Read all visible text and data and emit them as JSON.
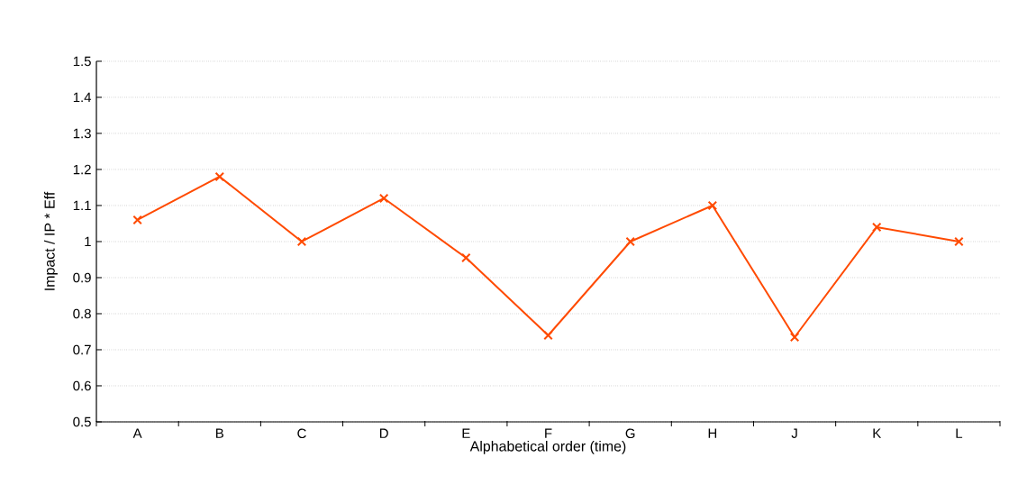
{
  "chart_data": {
    "type": "line",
    "xlabel": "Alphabetical order (time)",
    "ylabel": "Impact / IP * Eff",
    "categories": [
      "A",
      "B",
      "C",
      "D",
      "E",
      "F",
      "G",
      "H",
      "J",
      "K",
      "L"
    ],
    "series": [
      {
        "color": "#ff4a00",
        "values": [
          1.06,
          1.18,
          1.0,
          1.12,
          0.955,
          0.74,
          1.0,
          1.1,
          0.735,
          1.04,
          1.0
        ]
      }
    ],
    "ylim": [
      0.5,
      1.5
    ],
    "yticks": [
      0.5,
      0.6,
      0.7,
      0.8,
      0.9,
      1,
      1.1,
      1.2,
      1.3,
      1.4,
      1.5
    ],
    "grid": "y",
    "marker": "cross",
    "line_style": "solid"
  }
}
